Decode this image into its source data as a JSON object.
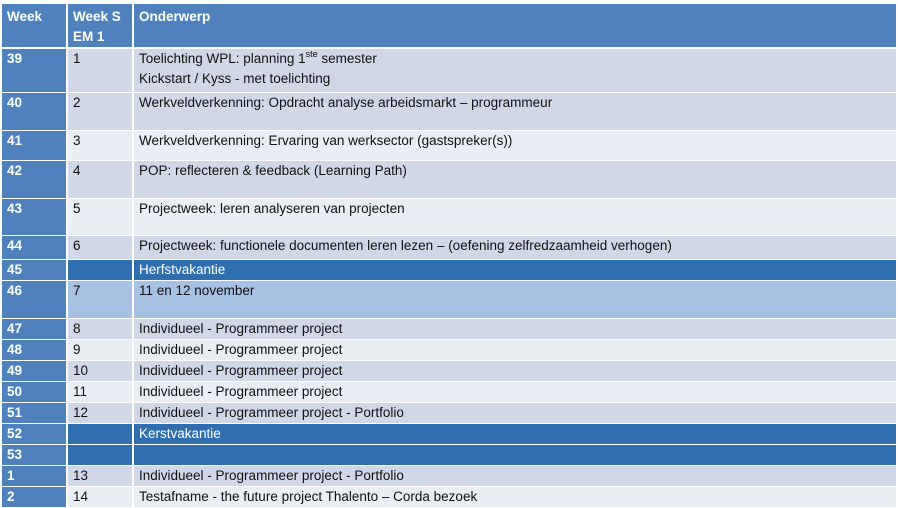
{
  "header": {
    "week": "Week",
    "sem": "Week S EM 1",
    "topic": "Onderwerp"
  },
  "rows": [
    {
      "week": "39",
      "sem": "1",
      "lines": [
        "Toelichting WPL: planning 1",
        "Kickstart / Kyss - met toelichting"
      ],
      "sup": "ste",
      "sup_suffix": " semester"
    },
    {
      "week": "40",
      "sem": "2",
      "lines": [
        "Werkveldverkenning:  Opdracht analyse arbeidsmarkt – programmeur"
      ]
    },
    {
      "week": "41",
      "sem": "3",
      "lines": [
        "Werkveldverkenning:  Ervaring van werksector (gastspreker(s))"
      ]
    },
    {
      "week": "42",
      "sem": "4",
      "lines": [
        "POP:  reflecteren & feedback (Learning Path)"
      ]
    },
    {
      "week": "43",
      "sem": "5",
      "lines": [
        "Projectweek:  leren analyseren van projecten"
      ]
    },
    {
      "week": "44",
      "sem": "6",
      "lines": [
        "Projectweek:  functionele documenten  leren lezen – (oefening zelfredzaamheid verhogen)"
      ]
    },
    {
      "week": "45",
      "sem": "",
      "lines": [
        "Herfstvakantie"
      ]
    },
    {
      "week": "46",
      "sem": "7",
      "lines": [
        "11 en 12 november"
      ]
    },
    {
      "week": "47",
      "sem": "8",
      "lines": [
        "Individueel - Programmeer  project"
      ]
    },
    {
      "week": "48",
      "sem": "9",
      "lines": [
        "Individueel - Programmeer  project"
      ]
    },
    {
      "week": "49",
      "sem": "10",
      "lines": [
        "Individueel - Programmeer  project"
      ]
    },
    {
      "week": "50",
      "sem": "11",
      "lines": [
        "Individueel - Programmeer  project"
      ]
    },
    {
      "week": "51",
      "sem": "12",
      "lines": [
        "Individueel - Programmeer  project - Portfolio"
      ]
    },
    {
      "week": "52",
      "sem": "",
      "lines": [
        "Kerstvakantie"
      ]
    },
    {
      "week": "53",
      "sem": "",
      "lines": [
        ""
      ]
    },
    {
      "week": "1",
      "sem": "13",
      "lines": [
        "Individueel  - Programmeer  project - Portfolio"
      ]
    },
    {
      "week": "2",
      "sem": "14",
      "lines": [
        "Testafname - the future project Thalento – Corda bezoek"
      ]
    }
  ],
  "colors": {
    "header": "#4f81bd",
    "row_light": "#d0d8e8",
    "row_lighter": "#e9edf4",
    "holiday": "#2f6fb0",
    "mid": "#a7c1e3"
  }
}
